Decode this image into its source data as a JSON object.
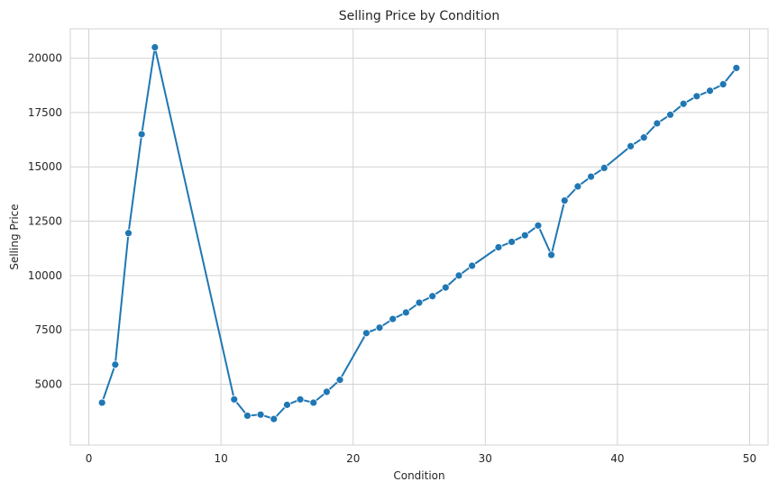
{
  "chart_data": {
    "type": "line",
    "title": "Selling Price by Condition",
    "xlabel": "Condition",
    "ylabel": "Selling Price",
    "xlim": [
      -1.4,
      51.4
    ],
    "ylim": [
      2200,
      21350
    ],
    "xticks": [
      0,
      10,
      20,
      30,
      40,
      50
    ],
    "yticks": [
      5000,
      7500,
      10000,
      12500,
      15000,
      17500,
      20000
    ],
    "grid": true,
    "marker": "circle",
    "colors": {
      "line": "#1f77b4",
      "grid": "#d3d3d3",
      "background": "#ffffff",
      "text": "#262626"
    },
    "series": [
      {
        "x": [
          1,
          2,
          3,
          4,
          5,
          11,
          12,
          13,
          14,
          15,
          16,
          17,
          18,
          19,
          21,
          22,
          23,
          24,
          25,
          26,
          27,
          28,
          29,
          31,
          32,
          33,
          34,
          35,
          36,
          37,
          38,
          39,
          41,
          42,
          43,
          44,
          45,
          46,
          47,
          48,
          49
        ],
        "y": [
          4150,
          5900,
          11950,
          16500,
          20500,
          4300,
          3550,
          3600,
          3400,
          4050,
          4300,
          4150,
          4650,
          5200,
          7350,
          7600,
          8000,
          8300,
          8750,
          9050,
          9450,
          10000,
          10450,
          11300,
          11550,
          11850,
          12300,
          10950,
          13450,
          14100,
          14550,
          14950,
          15950,
          16350,
          17000,
          17400,
          17900,
          18250,
          18500,
          18800,
          19550
        ]
      }
    ]
  }
}
